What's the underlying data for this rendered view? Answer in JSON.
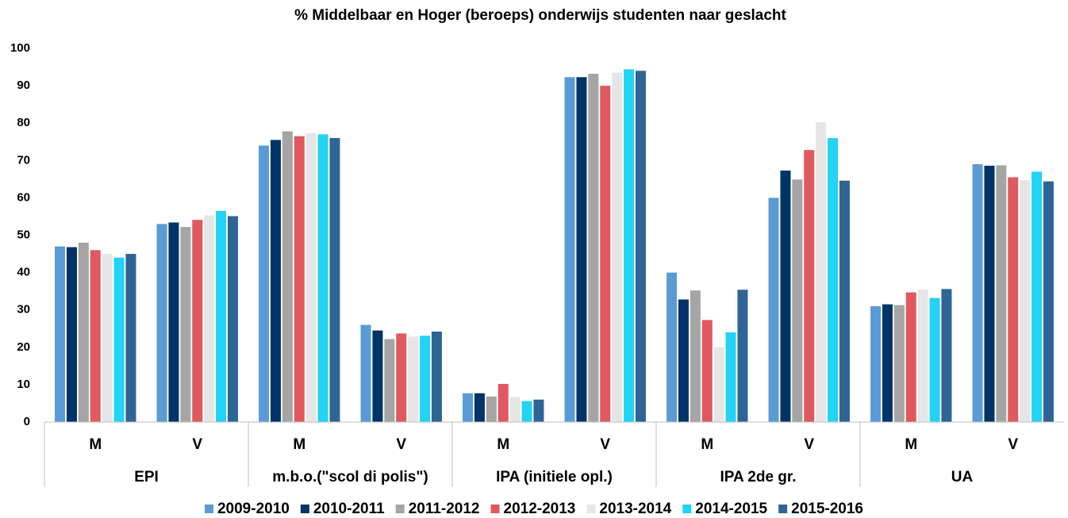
{
  "chart_data": {
    "type": "bar",
    "title": "%  Middelbaar en Hoger (beroeps) onderwijs studenten naar geslacht",
    "categories": [
      "M",
      "V",
      "M",
      "V",
      "M",
      "V",
      "M",
      "V",
      "M",
      "V"
    ],
    "groups": [
      "EPI",
      "m.b.o.(\"scol di polis\")",
      "IPA (initiele opl.)",
      "IPA 2de gr.",
      "UA"
    ],
    "series": [
      {
        "name": "2009-2010",
        "color": "#5b9bd5",
        "values": [
          47,
          53,
          74,
          26,
          7.7,
          92.3,
          40,
          60,
          31,
          69
        ]
      },
      {
        "name": "2010-2011",
        "color": "#003366",
        "values": [
          46.8,
          53.4,
          75.5,
          24.5,
          7.7,
          92.3,
          32.8,
          67.3,
          31.5,
          68.6
        ]
      },
      {
        "name": "2011-2012",
        "color": "#a5a5a5",
        "values": [
          48,
          52.2,
          77.8,
          22.2,
          6.8,
          93.2,
          35.2,
          64.9,
          31.3,
          68.7
        ]
      },
      {
        "name": "2012-2013",
        "color": "#e0595e",
        "values": [
          46,
          54.1,
          76.5,
          23.7,
          10.2,
          90,
          27.3,
          72.8,
          34.7,
          65.5
        ]
      },
      {
        "name": "2013-2014",
        "color": "#e7e6e6",
        "values": [
          45,
          55.3,
          77.3,
          22.9,
          6.7,
          93.5,
          20,
          80.2,
          35.5,
          64.7
        ]
      },
      {
        "name": "2014-2015",
        "color": "#22d3f5",
        "values": [
          44,
          56.5,
          77,
          23.1,
          5.6,
          94.4,
          24,
          76,
          33.2,
          67
        ]
      },
      {
        "name": "2015-2016",
        "color": "#2e6496",
        "values": [
          45,
          55.1,
          76,
          24.2,
          6,
          94,
          35.4,
          64.6,
          35.6,
          64.4
        ]
      }
    ],
    "ylim": [
      0,
      100
    ],
    "yticks": [
      0,
      10,
      20,
      30,
      40,
      50,
      60,
      70,
      80,
      90,
      100
    ],
    "grid": false
  }
}
